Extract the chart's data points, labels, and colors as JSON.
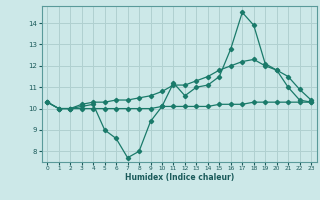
{
  "xlabel": "Humidex (Indice chaleur)",
  "x": [
    0,
    1,
    2,
    3,
    4,
    5,
    6,
    7,
    8,
    9,
    10,
    11,
    12,
    13,
    14,
    15,
    16,
    17,
    18,
    19,
    20,
    21,
    22,
    23
  ],
  "y_main": [
    10.3,
    10.0,
    10.0,
    10.1,
    10.2,
    9.0,
    8.6,
    7.7,
    8.0,
    9.4,
    10.1,
    11.2,
    10.6,
    11.0,
    11.1,
    11.5,
    12.8,
    14.5,
    13.9,
    12.1,
    11.8,
    11.0,
    10.4,
    10.3
  ],
  "y_upper": [
    10.3,
    10.0,
    10.0,
    10.2,
    10.3,
    10.3,
    10.4,
    10.4,
    10.5,
    10.6,
    10.8,
    11.1,
    11.1,
    11.3,
    11.5,
    11.8,
    12.0,
    12.2,
    12.3,
    12.0,
    11.8,
    11.5,
    10.9,
    10.4
  ],
  "y_lower": [
    10.3,
    10.0,
    10.0,
    10.0,
    10.0,
    10.0,
    10.0,
    10.0,
    10.0,
    10.0,
    10.1,
    10.1,
    10.1,
    10.1,
    10.1,
    10.2,
    10.2,
    10.2,
    10.3,
    10.3,
    10.3,
    10.3,
    10.3,
    10.3
  ],
  "bg_color": "#cce8e8",
  "grid_color": "#b0d0d0",
  "line_color": "#1a7a6a",
  "ylim": [
    7.5,
    14.8
  ],
  "xlim": [
    -0.5,
    23.5
  ],
  "yticks": [
    8,
    9,
    10,
    11,
    12,
    13,
    14
  ],
  "xticks": [
    0,
    1,
    2,
    3,
    4,
    5,
    6,
    7,
    8,
    9,
    10,
    11,
    12,
    13,
    14,
    15,
    16,
    17,
    18,
    19,
    20,
    21,
    22,
    23
  ]
}
